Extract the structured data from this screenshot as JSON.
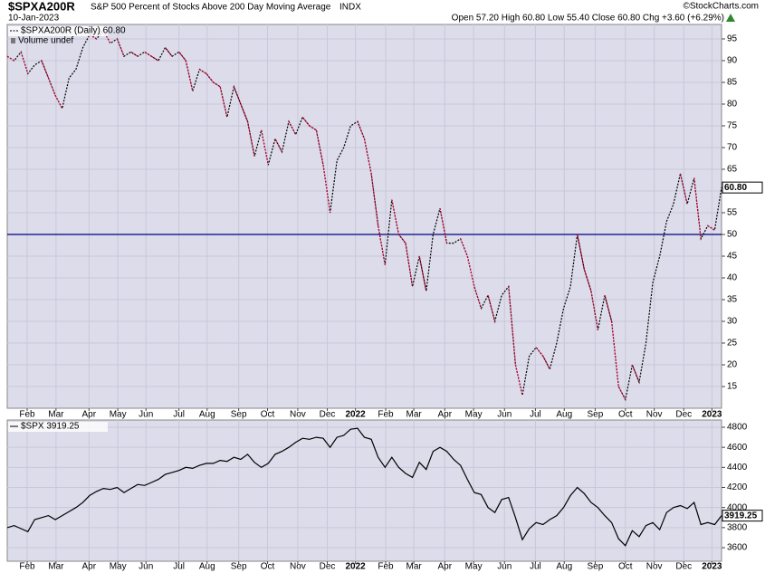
{
  "header": {
    "symbol": "$SPXA200R",
    "description": "S&P 500 Percent of Stocks Above 200 Day Moving Average",
    "exchange": "INDX",
    "date": "10-Jan-2023",
    "source": "©StockCharts.com",
    "quote": "Open 57.20  High 60.80  Low 55.40  Close 60.80  Chg +3.60 (+6.29%)"
  },
  "chart_data": [
    {
      "type": "line",
      "series": [
        {
          "name": "$SPXA200R (Daily) 60.80",
          "color": "#000000",
          "down_color": "#cc0033",
          "dashed": true,
          "last_label": "60.80",
          "values": [
            91,
            90,
            92,
            87,
            89,
            90,
            86,
            82,
            79,
            86,
            88,
            93,
            96,
            95,
            97,
            94,
            95,
            91,
            92,
            91,
            92,
            91,
            90,
            93,
            91,
            92,
            90,
            83,
            88,
            87,
            85,
            84,
            77,
            84,
            80,
            76,
            68,
            74,
            66,
            72,
            69,
            76,
            73,
            77,
            75,
            74,
            66,
            55,
            67,
            70,
            75,
            76,
            72,
            64,
            52,
            43,
            58,
            50,
            48,
            38,
            45,
            37,
            50,
            56,
            48,
            48,
            49,
            45,
            38,
            33,
            36,
            30,
            36,
            38,
            20,
            13,
            22,
            24,
            22,
            19,
            25,
            33,
            38,
            50,
            42,
            37,
            28,
            36,
            30,
            15,
            12,
            20,
            16,
            25,
            39,
            45,
            53,
            57,
            64,
            57,
            63,
            49,
            52,
            51,
            60.8
          ]
        }
      ],
      "volume_label": "Volume undef",
      "hline": 50,
      "hline_color": "#000080",
      "xlim": [
        0,
        104
      ],
      "ylim": [
        10,
        98.33
      ],
      "yticks": [
        15,
        20,
        25,
        30,
        35,
        40,
        45,
        50,
        55,
        60,
        65,
        70,
        75,
        80,
        85,
        90,
        95
      ],
      "xticks": [
        {
          "value": 2.9,
          "label": "Feb"
        },
        {
          "value": 7.1,
          "label": "Mar"
        },
        {
          "value": 11.9,
          "label": "Apr"
        },
        {
          "value": 16.1,
          "label": "May"
        },
        {
          "value": 20.2,
          "label": "Jun"
        },
        {
          "value": 25,
          "label": "Jul"
        },
        {
          "value": 29.1,
          "label": "Aug"
        },
        {
          "value": 33.7,
          "label": "Sep"
        },
        {
          "value": 37.9,
          "label": "Oct"
        },
        {
          "value": 42.3,
          "label": "Nov"
        },
        {
          "value": 46.6,
          "label": "Dec"
        },
        {
          "value": 50.7,
          "label": "2022"
        },
        {
          "value": 55.1,
          "label": "Feb"
        },
        {
          "value": 59.2,
          "label": "Mar"
        },
        {
          "value": 63.7,
          "label": "Apr"
        },
        {
          "value": 67.9,
          "label": "May"
        },
        {
          "value": 72.4,
          "label": "Jun"
        },
        {
          "value": 76.9,
          "label": "Jul"
        },
        {
          "value": 81.1,
          "label": "Aug"
        },
        {
          "value": 85.6,
          "label": "Sep"
        },
        {
          "value": 90,
          "label": "Oct"
        },
        {
          "value": 94.2,
          "label": "Nov"
        },
        {
          "value": 98.5,
          "label": "Dec"
        },
        {
          "value": 102.6,
          "label": "2023"
        }
      ]
    },
    {
      "type": "line",
      "series": [
        {
          "name": "$SPX 3919.25",
          "color": "#000000",
          "last_label": "3919.25",
          "values": [
            3800,
            3820,
            3790,
            3760,
            3880,
            3900,
            3920,
            3880,
            3920,
            3960,
            4000,
            4050,
            4120,
            4160,
            4190,
            4180,
            4200,
            4150,
            4190,
            4230,
            4220,
            4250,
            4280,
            4330,
            4350,
            4370,
            4400,
            4390,
            4420,
            4440,
            4440,
            4470,
            4460,
            4500,
            4480,
            4530,
            4450,
            4400,
            4440,
            4530,
            4560,
            4600,
            4650,
            4690,
            4680,
            4700,
            4690,
            4600,
            4700,
            4720,
            4780,
            4790,
            4700,
            4680,
            4500,
            4400,
            4500,
            4400,
            4340,
            4300,
            4450,
            4380,
            4560,
            4600,
            4560,
            4480,
            4420,
            4280,
            4150,
            4130,
            4000,
            3950,
            4080,
            4100,
            3900,
            3680,
            3790,
            3850,
            3830,
            3880,
            3920,
            4000,
            4120,
            4200,
            4140,
            4050,
            4000,
            3920,
            3850,
            3690,
            3620,
            3770,
            3710,
            3820,
            3850,
            3780,
            3950,
            4000,
            4020,
            3990,
            4050,
            3830,
            3850,
            3830,
            3919.25
          ]
        }
      ],
      "xlim": [
        0,
        104
      ],
      "ylim": [
        3465,
        4872
      ],
      "yticks": [
        3600,
        3800,
        4000,
        4200,
        4400,
        4600,
        4800
      ],
      "xticks": [
        {
          "value": 2.9,
          "label": "Feb"
        },
        {
          "value": 7.1,
          "label": "Mar"
        },
        {
          "value": 11.9,
          "label": "Apr"
        },
        {
          "value": 16.1,
          "label": "May"
        },
        {
          "value": 20.2,
          "label": "Jun"
        },
        {
          "value": 25,
          "label": "Jul"
        },
        {
          "value": 29.1,
          "label": "Aug"
        },
        {
          "value": 33.7,
          "label": "Sep"
        },
        {
          "value": 37.9,
          "label": "Oct"
        },
        {
          "value": 42.3,
          "label": "Nov"
        },
        {
          "value": 46.6,
          "label": "Dec"
        },
        {
          "value": 50.7,
          "label": "2022"
        },
        {
          "value": 55.1,
          "label": "Feb"
        },
        {
          "value": 59.2,
          "label": "Mar"
        },
        {
          "value": 63.7,
          "label": "Apr"
        },
        {
          "value": 67.9,
          "label": "May"
        },
        {
          "value": 72.4,
          "label": "Jun"
        },
        {
          "value": 76.9,
          "label": "Jul"
        },
        {
          "value": 81.1,
          "label": "Aug"
        },
        {
          "value": 85.6,
          "label": "Sep"
        },
        {
          "value": 90,
          "label": "Oct"
        },
        {
          "value": 94.2,
          "label": "Nov"
        },
        {
          "value": 98.5,
          "label": "Dec"
        },
        {
          "value": 102.6,
          "label": "2023"
        }
      ]
    }
  ]
}
